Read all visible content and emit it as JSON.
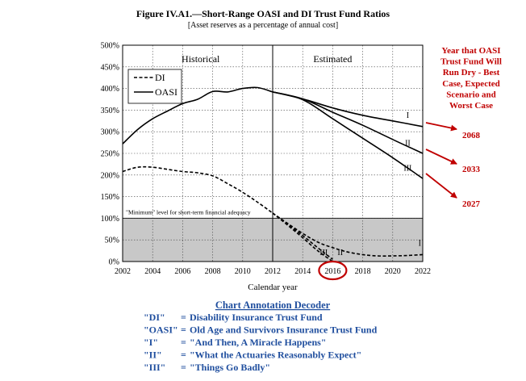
{
  "chart_data": {
    "type": "line",
    "title": "Figure IV.A1.—Short-Range OASI and DI Trust Fund Ratios",
    "subtitle": "[Asset reserves as a percentage of annual cost]",
    "xlabel": "Calendar year",
    "ylabel": "",
    "xlim": [
      2002,
      2022
    ],
    "ylim": [
      0,
      500
    ],
    "x_ticks": [
      "2002",
      "2004",
      "2006",
      "2008",
      "2010",
      "2012",
      "2014",
      "2016",
      "2018",
      "2020",
      "2022"
    ],
    "y_ticks": [
      "0%",
      "50%",
      "100%",
      "150%",
      "200%",
      "250%",
      "300%",
      "350%",
      "400%",
      "450%",
      "500%"
    ],
    "grid": true,
    "regions": {
      "historical": "Historical",
      "estimated": "Estimated",
      "divider_year": 2012
    },
    "minimum_level": {
      "value": 100,
      "label": "\"Minimum\" level for short-term financial adequacy"
    },
    "legend": {
      "placement": "top-left",
      "items": [
        {
          "label": "DI",
          "style": "dashed"
        },
        {
          "label": "OASI",
          "style": "solid"
        }
      ]
    },
    "series": [
      {
        "name": "OASI",
        "style": "solid",
        "x": [
          2002,
          2003,
          2004,
          2005,
          2006,
          2007,
          2008,
          2009,
          2010,
          2011,
          2012
        ],
        "y": [
          272,
          305,
          330,
          348,
          365,
          375,
          393,
          392,
          400,
          402,
          392
        ]
      },
      {
        "name": "DI",
        "style": "dashed",
        "x": [
          2002,
          2003,
          2004,
          2005,
          2006,
          2007,
          2008,
          2009,
          2010,
          2011,
          2012
        ],
        "y": [
          208,
          218,
          218,
          213,
          208,
          205,
          198,
          180,
          160,
          137,
          112
        ]
      }
    ],
    "projections": [
      {
        "fund": "OASI",
        "scenario": "I",
        "x": [
          2012,
          2014,
          2016,
          2018,
          2020,
          2022
        ],
        "y": [
          392,
          376,
          355,
          338,
          325,
          312
        ]
      },
      {
        "fund": "OASI",
        "scenario": "II",
        "x": [
          2012,
          2014,
          2016,
          2018,
          2020,
          2022
        ],
        "y": [
          392,
          376,
          345,
          315,
          282,
          250
        ]
      },
      {
        "fund": "OASI",
        "scenario": "III",
        "x": [
          2012,
          2014,
          2016,
          2018,
          2020,
          2022
        ],
        "y": [
          392,
          374,
          330,
          285,
          240,
          192
        ]
      },
      {
        "fund": "DI",
        "scenario": "I",
        "x": [
          2012,
          2013,
          2014,
          2015,
          2016,
          2017,
          2018,
          2019,
          2020,
          2021,
          2022
        ],
        "y": [
          112,
          88,
          65,
          45,
          32,
          22,
          16,
          13,
          13,
          14,
          16
        ]
      },
      {
        "fund": "DI",
        "scenario": "II",
        "x": [
          2012,
          2013,
          2014,
          2015,
          2016
        ],
        "y": [
          112,
          86,
          60,
          32,
          5
        ]
      },
      {
        "fund": "DI",
        "scenario": "III",
        "x": [
          2012,
          2013,
          2014,
          2015,
          2016
        ],
        "y": [
          112,
          84,
          55,
          25,
          0
        ]
      }
    ]
  },
  "annotations": {
    "heading": [
      "Year that OASI",
      "Trust Fund Will",
      "Run Dry - Best",
      "Case, Expected",
      "Scenario and",
      "Worst Case"
    ],
    "years": [
      "2068",
      "2033",
      "2027"
    ],
    "accent_color": "#c00000",
    "circled_tick": "2016"
  },
  "decoder": {
    "title": "Chart Annotation Decoder",
    "color": "#1f4e9e",
    "items": [
      {
        "key": "\"DI\"",
        "sep": "=",
        "text": "Disability Insurance Trust Fund"
      },
      {
        "key": "\"OASI\"",
        "sep": "=",
        "text": "Old Age and Survivors Insurance Trust Fund"
      },
      {
        "key": "\"I\"",
        "sep": "=",
        "text": "\"And Then, A Miracle Happens\""
      },
      {
        "key": "\"II\"",
        "sep": "=",
        "text": "\"What the Actuaries Reasonably Expect\""
      },
      {
        "key": "\"III\"",
        "sep": "=",
        "text": "\"Things Go Badly\""
      }
    ]
  }
}
